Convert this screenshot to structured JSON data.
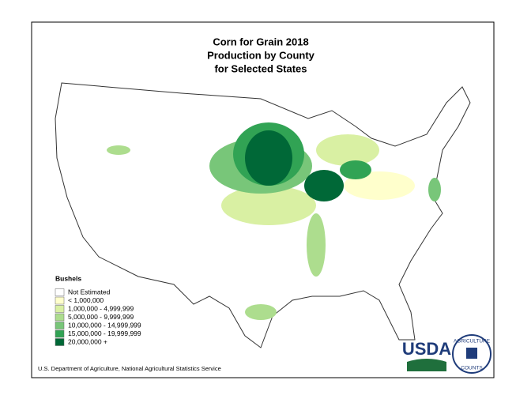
{
  "header": {
    "title_lines": [
      "Corn for Grain 2018",
      "Production by County",
      "for Selected States"
    ]
  },
  "legend": {
    "title": "Bushels",
    "items": [
      {
        "label": "Not Estimated",
        "color": "#ffffff"
      },
      {
        "label": "< 1,000,000",
        "color": "#ffffcc"
      },
      {
        "label": "1,000,000 -   4,999,999",
        "color": "#d9f0a3"
      },
      {
        "label": "5,000,000 -   9,999,999",
        "color": "#addd8e"
      },
      {
        "label": "10,000,000 - 14,999,999",
        "color": "#78c679"
      },
      {
        "label": "15,000,000 - 19,999,999",
        "color": "#31a354"
      },
      {
        "label": "20,000,000 +",
        "color": "#006837"
      }
    ]
  },
  "source": "U.S. Department of Agriculture, National Agricultural Statistics Service",
  "logo": {
    "usda": "USDA",
    "ring_top": "AGRICULTURE",
    "ring_bottom": "COUNTS"
  }
}
